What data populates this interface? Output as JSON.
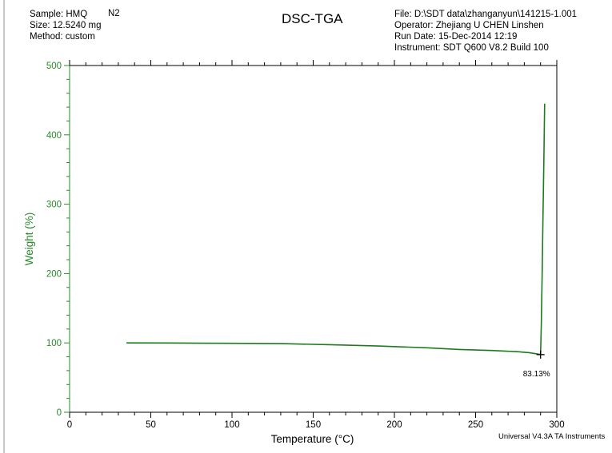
{
  "header": {
    "sample_label": "Sample: HMQ",
    "sample_gas": "N2",
    "size_label": "Size:  12.5240 mg",
    "method_label": "Method: custom",
    "title": "DSC-TGA",
    "file_label": "File: D:\\SDT data\\zhanganyun\\141215-1.001",
    "operator_label": "Operator: Zhejiang U  CHEN Linshen",
    "run_date_label": "Run Date: 15-Dec-2014 12:19",
    "instrument_label": "Instrument: SDT Q600 V8.2 Build 100"
  },
  "footer": "Universal V4.3A TA Instruments",
  "colors": {
    "series": "#1f7a1f",
    "y_axis": "#2b8a2b",
    "x_axis": "#000000"
  },
  "chart_data": {
    "type": "line",
    "title": "DSC-TGA",
    "xlabel": "Temperature (°C)",
    "ylabel": "Weight (%)",
    "xlim": [
      0,
      300
    ],
    "ylim": [
      0,
      500
    ],
    "x_ticks": [
      0,
      50,
      100,
      150,
      200,
      250,
      300
    ],
    "y_ticks": [
      0,
      100,
      200,
      300,
      400,
      500
    ],
    "grid": false,
    "series": [
      {
        "points": [
          [
            35,
            100.0
          ],
          [
            60,
            99.9
          ],
          [
            100,
            99.4
          ],
          [
            130,
            99.0
          ],
          [
            160,
            97.5
          ],
          [
            190,
            95.5
          ],
          [
            220,
            93.0
          ],
          [
            240,
            90.5
          ],
          [
            260,
            89.0
          ],
          [
            275,
            87.5
          ],
          [
            283,
            86.0
          ],
          [
            288,
            84.0
          ],
          [
            290,
            83.13
          ],
          [
            290.5,
            130
          ],
          [
            291,
            200
          ],
          [
            291.5,
            280
          ],
          [
            292,
            360
          ],
          [
            292.5,
            445
          ]
        ]
      }
    ],
    "annotations": [
      {
        "x": 290,
        "y": 83.13,
        "text": "83.13%",
        "marker": "cross"
      }
    ]
  }
}
